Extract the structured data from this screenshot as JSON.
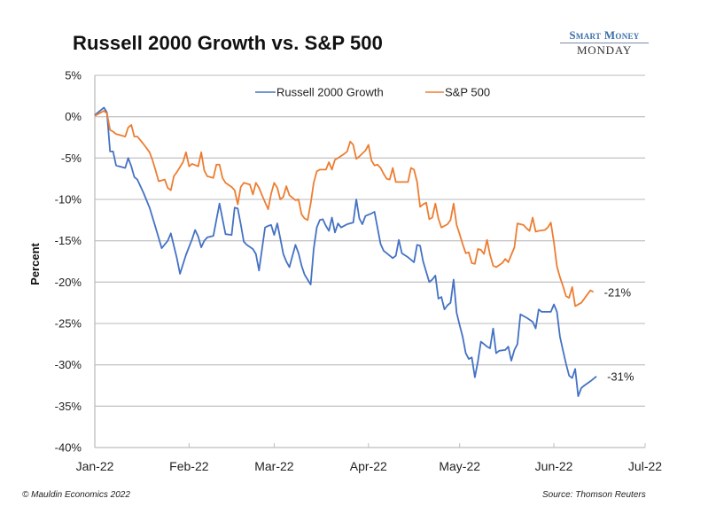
{
  "header": {
    "title": "Russell 2000 Growth vs. S&P 500",
    "logo_line1": "Smart Money",
    "logo_line2": "MONDAY"
  },
  "footer": {
    "copyright": "© Mauldin Economics 2022",
    "source": "Source: Thomson Reuters"
  },
  "chart_data": {
    "type": "line",
    "title": "Russell 2000 Growth vs. S&P 500",
    "xlabel": "",
    "ylabel": "Percent",
    "ylim": [
      -40,
      5
    ],
    "yticks": [
      5,
      0,
      -5,
      -10,
      -15,
      -20,
      -25,
      -30,
      -35,
      -40
    ],
    "ytick_labels": [
      "5%",
      "0%",
      "-5%",
      "-10%",
      "-15%",
      "-20%",
      "-25%",
      "-30%",
      "-35%",
      "-40%"
    ],
    "x_unit": "days since 2022-01-01",
    "xlim": [
      0,
      181
    ],
    "xticks": [
      0,
      31,
      59,
      90,
      120,
      151,
      181
    ],
    "xtick_labels": [
      "Jan-22",
      "Feb-22",
      "Mar-22",
      "Apr-22",
      "May-22",
      "Jun-22",
      "Jul-22"
    ],
    "grid": "horizontal",
    "legend_position": "top-center",
    "series": [
      {
        "name": "Russell 2000 Growth",
        "color": "#4472c4",
        "end_label": "-31%",
        "points": [
          [
            0,
            0.2
          ],
          [
            2,
            0.8
          ],
          [
            3,
            1.1
          ],
          [
            4,
            0.5
          ],
          [
            5,
            -4.2
          ],
          [
            6,
            -4.2
          ],
          [
            7,
            -5.9
          ],
          [
            9,
            -6.1
          ],
          [
            10,
            -6.2
          ],
          [
            11,
            -5.0
          ],
          [
            12,
            -6.0
          ],
          [
            13,
            -7.3
          ],
          [
            14,
            -7.6
          ],
          [
            16,
            -9.2
          ],
          [
            18,
            -11.0
          ],
          [
            20,
            -13.4
          ],
          [
            22,
            -15.9
          ],
          [
            24,
            -15.0
          ],
          [
            25,
            -14.1
          ],
          [
            26,
            -15.6
          ],
          [
            27,
            -17.1
          ],
          [
            28,
            -19.0
          ],
          [
            30,
            -16.7
          ],
          [
            32,
            -14.8
          ],
          [
            33,
            -13.7
          ],
          [
            34,
            -14.5
          ],
          [
            35,
            -15.8
          ],
          [
            36,
            -15.0
          ],
          [
            37,
            -14.6
          ],
          [
            39,
            -14.4
          ],
          [
            41,
            -10.5
          ],
          [
            43,
            -14.2
          ],
          [
            45,
            -14.3
          ],
          [
            46,
            -11.0
          ],
          [
            47,
            -11.1
          ],
          [
            48,
            -13.0
          ],
          [
            49,
            -15.1
          ],
          [
            50,
            -15.5
          ],
          [
            52,
            -16.0
          ],
          [
            53,
            -16.6
          ],
          [
            54,
            -18.6
          ],
          [
            55,
            -16.0
          ],
          [
            56,
            -13.4
          ],
          [
            57,
            -13.2
          ],
          [
            58,
            -13.1
          ],
          [
            59,
            -14.3
          ],
          [
            60,
            -12.9
          ],
          [
            61,
            -14.7
          ],
          [
            62,
            -16.6
          ],
          [
            63,
            -17.5
          ],
          [
            64,
            -18.2
          ],
          [
            66,
            -15.5
          ],
          [
            67,
            -16.5
          ],
          [
            68,
            -18.0
          ],
          [
            69,
            -19.1
          ],
          [
            71,
            -20.3
          ],
          [
            72,
            -16.0
          ],
          [
            73,
            -13.4
          ],
          [
            74,
            -12.5
          ],
          [
            75,
            -12.4
          ],
          [
            76,
            -13.2
          ],
          [
            77,
            -13.8
          ],
          [
            78,
            -12.2
          ],
          [
            79,
            -14.0
          ],
          [
            80,
            -12.9
          ],
          [
            81,
            -13.4
          ],
          [
            83,
            -13.0
          ],
          [
            85,
            -12.8
          ],
          [
            86,
            -10.0
          ],
          [
            87,
            -12.3
          ],
          [
            88,
            -13.0
          ],
          [
            89,
            -12.0
          ],
          [
            91,
            -11.7
          ],
          [
            92,
            -11.5
          ],
          [
            94,
            -15.4
          ],
          [
            95,
            -16.2
          ],
          [
            96,
            -16.5
          ],
          [
            98,
            -17.1
          ],
          [
            99,
            -16.8
          ],
          [
            100,
            -14.9
          ],
          [
            101,
            -16.5
          ],
          [
            103,
            -17.0
          ],
          [
            105,
            -17.6
          ],
          [
            106,
            -15.5
          ],
          [
            107,
            -15.6
          ],
          [
            108,
            -17.5
          ],
          [
            110,
            -20.0
          ],
          [
            111,
            -19.7
          ],
          [
            112,
            -19.2
          ],
          [
            113,
            -22.0
          ],
          [
            114,
            -21.8
          ],
          [
            115,
            -23.3
          ],
          [
            116,
            -22.8
          ],
          [
            117,
            -22.5
          ],
          [
            118,
            -19.7
          ],
          [
            119,
            -23.7
          ],
          [
            120,
            -25.2
          ],
          [
            121,
            -26.6
          ],
          [
            122,
            -28.6
          ],
          [
            123,
            -29.3
          ],
          [
            124,
            -29.1
          ],
          [
            125,
            -31.5
          ],
          [
            126,
            -29.6
          ],
          [
            127,
            -27.2
          ],
          [
            128,
            -27.5
          ],
          [
            129,
            -27.8
          ],
          [
            130,
            -28.0
          ],
          [
            131,
            -25.6
          ],
          [
            132,
            -28.6
          ],
          [
            133,
            -28.3
          ],
          [
            135,
            -28.2
          ],
          [
            136,
            -27.8
          ],
          [
            137,
            -29.5
          ],
          [
            138,
            -28.2
          ],
          [
            139,
            -27.5
          ],
          [
            140,
            -23.9
          ],
          [
            142,
            -24.3
          ],
          [
            144,
            -24.8
          ],
          [
            145,
            -25.6
          ],
          [
            146,
            -23.3
          ],
          [
            147,
            -23.6
          ],
          [
            148,
            -23.6
          ],
          [
            150,
            -23.6
          ],
          [
            151,
            -22.7
          ],
          [
            152,
            -23.6
          ],
          [
            153,
            -26.6
          ],
          [
            154,
            -28.3
          ],
          [
            155,
            -29.9
          ],
          [
            156,
            -31.3
          ],
          [
            157,
            -31.6
          ],
          [
            158,
            -30.5
          ],
          [
            159,
            -33.8
          ],
          [
            160,
            -32.8
          ],
          [
            161,
            -32.5
          ],
          [
            163,
            -32.0
          ],
          [
            165,
            -31.4
          ]
        ]
      },
      {
        "name": "S&P 500",
        "color": "#ed7d31",
        "end_label": "-21%",
        "points": [
          [
            0,
            0.1
          ],
          [
            3,
            0.7
          ],
          [
            4,
            0.4
          ],
          [
            5,
            -1.6
          ],
          [
            6,
            -1.8
          ],
          [
            7,
            -2.1
          ],
          [
            9,
            -2.3
          ],
          [
            10,
            -2.4
          ],
          [
            11,
            -1.3
          ],
          [
            12,
            -1.0
          ],
          [
            13,
            -2.4
          ],
          [
            14,
            -2.4
          ],
          [
            16,
            -3.3
          ],
          [
            18,
            -4.3
          ],
          [
            19,
            -5.3
          ],
          [
            20,
            -6.5
          ],
          [
            21,
            -7.8
          ],
          [
            23,
            -7.6
          ],
          [
            24,
            -8.6
          ],
          [
            25,
            -8.9
          ],
          [
            26,
            -7.2
          ],
          [
            27,
            -6.7
          ],
          [
            29,
            -5.5
          ],
          [
            30,
            -4.3
          ],
          [
            31,
            -6.0
          ],
          [
            32,
            -5.7
          ],
          [
            34,
            -6.0
          ],
          [
            35,
            -4.3
          ],
          [
            36,
            -6.5
          ],
          [
            37,
            -7.2
          ],
          [
            39,
            -7.4
          ],
          [
            40,
            -5.8
          ],
          [
            41,
            -5.8
          ],
          [
            42,
            -7.4
          ],
          [
            43,
            -8.0
          ],
          [
            45,
            -8.5
          ],
          [
            46,
            -8.9
          ],
          [
            47,
            -10.6
          ],
          [
            48,
            -8.5
          ],
          [
            49,
            -8.0
          ],
          [
            51,
            -8.2
          ],
          [
            52,
            -9.4
          ],
          [
            53,
            -8.0
          ],
          [
            54,
            -8.6
          ],
          [
            55,
            -9.5
          ],
          [
            57,
            -11.2
          ],
          [
            58,
            -9.3
          ],
          [
            59,
            -8.0
          ],
          [
            60,
            -8.6
          ],
          [
            61,
            -10.0
          ],
          [
            62,
            -9.7
          ],
          [
            63,
            -8.4
          ],
          [
            64,
            -9.5
          ],
          [
            66,
            -10.1
          ],
          [
            67,
            -10.0
          ],
          [
            68,
            -11.8
          ],
          [
            69,
            -12.3
          ],
          [
            70,
            -12.5
          ],
          [
            71,
            -10.5
          ],
          [
            72,
            -8.0
          ],
          [
            73,
            -6.6
          ],
          [
            74,
            -6.4
          ],
          [
            76,
            -6.4
          ],
          [
            77,
            -5.5
          ],
          [
            78,
            -6.4
          ],
          [
            79,
            -5.2
          ],
          [
            80,
            -5.0
          ],
          [
            82,
            -4.5
          ],
          [
            83,
            -4.2
          ],
          [
            84,
            -3.0
          ],
          [
            85,
            -3.4
          ],
          [
            86,
            -5.1
          ],
          [
            87,
            -4.8
          ],
          [
            89,
            -4.1
          ],
          [
            90,
            -3.4
          ],
          [
            91,
            -5.3
          ],
          [
            92,
            -5.9
          ],
          [
            93,
            -5.8
          ],
          [
            94,
            -6.2
          ],
          [
            95,
            -6.9
          ],
          [
            96,
            -7.5
          ],
          [
            97,
            -7.6
          ],
          [
            98,
            -6.2
          ],
          [
            99,
            -7.9
          ],
          [
            100,
            -7.9
          ],
          [
            103,
            -7.9
          ],
          [
            104,
            -6.2
          ],
          [
            105,
            -6.4
          ],
          [
            106,
            -7.9
          ],
          [
            107,
            -10.9
          ],
          [
            108,
            -10.6
          ],
          [
            109,
            -10.4
          ],
          [
            110,
            -12.4
          ],
          [
            111,
            -12.2
          ],
          [
            112,
            -10.5
          ],
          [
            113,
            -12.3
          ],
          [
            114,
            -13.4
          ],
          [
            115,
            -13.2
          ],
          [
            116,
            -13.0
          ],
          [
            117,
            -12.5
          ],
          [
            118,
            -10.5
          ],
          [
            119,
            -13.1
          ],
          [
            120,
            -14.2
          ],
          [
            121,
            -15.4
          ],
          [
            122,
            -16.5
          ],
          [
            123,
            -16.4
          ],
          [
            124,
            -17.7
          ],
          [
            125,
            -17.8
          ],
          [
            126,
            -16.0
          ],
          [
            127,
            -16.1
          ],
          [
            128,
            -16.6
          ],
          [
            129,
            -14.9
          ],
          [
            130,
            -16.7
          ],
          [
            131,
            -18.0
          ],
          [
            132,
            -18.2
          ],
          [
            134,
            -17.7
          ],
          [
            135,
            -17.2
          ],
          [
            136,
            -17.6
          ],
          [
            137,
            -16.7
          ],
          [
            138,
            -15.8
          ],
          [
            139,
            -12.9
          ],
          [
            141,
            -13.1
          ],
          [
            142,
            -13.5
          ],
          [
            143,
            -13.8
          ],
          [
            144,
            -12.2
          ],
          [
            145,
            -13.9
          ],
          [
            146,
            -13.8
          ],
          [
            148,
            -13.7
          ],
          [
            149,
            -13.4
          ],
          [
            150,
            -12.8
          ],
          [
            151,
            -15.2
          ],
          [
            152,
            -18.1
          ],
          [
            153,
            -19.4
          ],
          [
            154,
            -20.5
          ],
          [
            155,
            -21.7
          ],
          [
            156,
            -21.9
          ],
          [
            157,
            -20.6
          ],
          [
            158,
            -22.9
          ],
          [
            160,
            -22.5
          ],
          [
            162,
            -21.5
          ],
          [
            163,
            -21.0
          ],
          [
            164,
            -21.2
          ]
        ]
      }
    ]
  }
}
